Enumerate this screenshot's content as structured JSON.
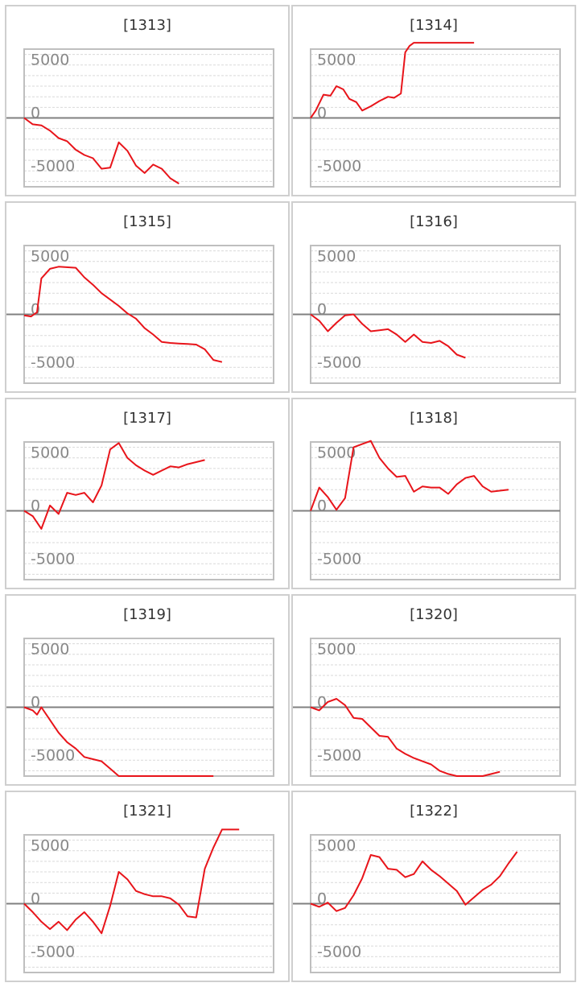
{
  "colors": {
    "line": "#e8141a",
    "zero_line": "#808080",
    "grid": "#d9d9d9",
    "frame": "#bfbfbf",
    "tick": "#888888"
  },
  "chart_data": [
    {
      "type": "line",
      "title": "[1313]",
      "yticks": [
        5000,
        0,
        -5000
      ],
      "ylim": [
        -6500,
        6500
      ],
      "grid": true,
      "xlim": [
        0,
        29
      ],
      "x": [
        0,
        1,
        2,
        3,
        4,
        5,
        6,
        7,
        8,
        9,
        10,
        11,
        12,
        13,
        14,
        15,
        16,
        17,
        18
      ],
      "values": [
        0,
        -600,
        -700,
        -1200,
        -1900,
        -2200,
        -3000,
        -3500,
        -3800,
        -4800,
        -4700,
        -2300,
        -3100,
        -4500,
        -5200,
        -4400,
        -4800,
        -5700,
        -6200
      ]
    },
    {
      "type": "line",
      "title": "[1314]",
      "yticks": [
        5000,
        0,
        -5000
      ],
      "ylim": [
        -6500,
        6500
      ],
      "grid": true,
      "xlim": [
        0,
        29
      ],
      "x": [
        0,
        0.6,
        1.5,
        2.3,
        3,
        3.8,
        4.5,
        5.3,
        6,
        7,
        8,
        9,
        9.7,
        10.5,
        11,
        11.5,
        12,
        12.5,
        13,
        14,
        15,
        16,
        17,
        18,
        19
      ],
      "values": [
        0,
        700,
        2200,
        2100,
        3000,
        2700,
        1800,
        1500,
        700,
        1100,
        1600,
        2000,
        1900,
        2300,
        6200,
        6800,
        7100,
        7100,
        7100,
        7100,
        7100,
        7100,
        7100,
        7100,
        7100
      ]
    },
    {
      "type": "line",
      "title": "[1315]",
      "yticks": [
        5000,
        0,
        -5000
      ],
      "ylim": [
        -6500,
        6500
      ],
      "grid": true,
      "xlim": [
        0,
        29
      ],
      "x": [
        0,
        0.8,
        1.5,
        2,
        3,
        4,
        6,
        7,
        8,
        9,
        10,
        11,
        12,
        13,
        14,
        15,
        16,
        17,
        18,
        19,
        20,
        21,
        22,
        23
      ],
      "values": [
        -100,
        -200,
        200,
        3400,
        4300,
        4500,
        4400,
        3500,
        2800,
        2000,
        1400,
        800,
        100,
        -400,
        -1300,
        -1900,
        -2600,
        -2700,
        -2750,
        -2800,
        -2850,
        -3300,
        -4300,
        -4500
      ]
    },
    {
      "type": "line",
      "title": "[1316]",
      "yticks": [
        5000,
        0,
        -5000
      ],
      "ylim": [
        -6500,
        6500
      ],
      "grid": true,
      "xlim": [
        0,
        29
      ],
      "x": [
        0,
        1,
        2,
        3,
        4,
        5,
        6,
        7,
        8,
        9,
        10,
        11,
        12,
        13,
        14,
        15,
        16,
        17,
        18
      ],
      "values": [
        0,
        -600,
        -1600,
        -800,
        -100,
        0,
        -900,
        -1600,
        -1500,
        -1400,
        -1900,
        -2600,
        -1900,
        -2600,
        -2700,
        -2500,
        -3000,
        -3800,
        -4100
      ]
    },
    {
      "type": "line",
      "title": "[1317]",
      "yticks": [
        5000,
        0,
        -5000
      ],
      "ylim": [
        -6500,
        6500
      ],
      "grid": true,
      "xlim": [
        0,
        29
      ],
      "x": [
        0,
        1,
        2,
        3,
        4,
        5,
        6,
        7,
        8,
        9,
        10,
        11,
        12,
        13,
        14,
        15,
        16,
        17,
        18,
        19,
        20,
        21
      ],
      "values": [
        0,
        -500,
        -1700,
        500,
        -300,
        1700,
        1500,
        1700,
        800,
        2400,
        5800,
        6400,
        5000,
        4300,
        3800,
        3400,
        3800,
        4200,
        4100,
        4400,
        4600,
        4800
      ]
    },
    {
      "type": "line",
      "title": "[1318]",
      "yticks": [
        5000,
        0,
        -5000
      ],
      "ylim": [
        -6500,
        6500
      ],
      "grid": true,
      "xlim": [
        0,
        29
      ],
      "x": [
        0,
        1,
        2,
        3,
        4,
        5,
        6,
        7,
        8,
        9,
        10,
        11,
        12,
        13,
        14,
        15,
        16,
        17,
        18,
        19,
        20,
        21,
        22,
        23
      ],
      "values": [
        0,
        2200,
        1300,
        100,
        1200,
        6000,
        6300,
        6600,
        5000,
        4000,
        3200,
        3300,
        1800,
        2300,
        2200,
        2200,
        1600,
        2500,
        3100,
        3300,
        2300,
        1800,
        1900,
        2000
      ]
    },
    {
      "type": "line",
      "title": "[1319]",
      "yticks": [
        5000,
        0,
        -5000
      ],
      "ylim": [
        -6500,
        6500
      ],
      "grid": true,
      "xlim": [
        0,
        29
      ],
      "x": [
        0,
        1,
        1.5,
        2,
        3,
        4,
        5,
        6,
        7,
        8,
        9,
        10,
        11,
        12,
        13,
        14,
        15,
        16,
        17,
        18,
        19,
        20,
        21,
        22
      ],
      "values": [
        0,
        -300,
        -700,
        0,
        -1200,
        -2400,
        -3300,
        -3900,
        -4700,
        -4900,
        -5100,
        -5800,
        -6500,
        -6500,
        -6500,
        -6500,
        -6500,
        -6500,
        -6500,
        -6500,
        -6500,
        -6500,
        -6500,
        -6500
      ]
    },
    {
      "type": "line",
      "title": "[1320]",
      "yticks": [
        5000,
        0,
        -5000
      ],
      "ylim": [
        -6500,
        6500
      ],
      "grid": true,
      "xlim": [
        0,
        29
      ],
      "x": [
        0,
        1,
        2,
        3,
        4,
        5,
        6,
        7,
        8,
        9,
        10,
        11,
        12,
        13,
        14,
        15,
        16,
        17,
        18,
        19,
        20,
        21,
        22
      ],
      "values": [
        0,
        -300,
        500,
        800,
        200,
        -1000,
        -1100,
        -1900,
        -2700,
        -2800,
        -3900,
        -4400,
        -4800,
        -5100,
        -5400,
        -6000,
        -6300,
        -6500,
        -6500,
        -6500,
        -6500,
        -6300,
        -6100
      ]
    },
    {
      "type": "line",
      "title": "[1321]",
      "yticks": [
        5000,
        0,
        -5000
      ],
      "ylim": [
        -6500,
        6500
      ],
      "grid": true,
      "xlim": [
        0,
        29
      ],
      "x": [
        0,
        1,
        2,
        3,
        4,
        5,
        6,
        7,
        8,
        9,
        10,
        11,
        12,
        13,
        14,
        15,
        16,
        17,
        18,
        19,
        20,
        21,
        22,
        23,
        24,
        25
      ],
      "values": [
        0,
        -800,
        -1700,
        -2400,
        -1700,
        -2500,
        -1500,
        -800,
        -1700,
        -2800,
        -200,
        3000,
        2300,
        1200,
        900,
        700,
        700,
        500,
        -100,
        -1200,
        -1300,
        3300,
        5300,
        7000,
        7000,
        7000
      ]
    },
    {
      "type": "line",
      "title": "[1322]",
      "yticks": [
        5000,
        0,
        -5000
      ],
      "ylim": [
        -6500,
        6500
      ],
      "grid": true,
      "xlim": [
        0,
        29
      ],
      "x": [
        0,
        1,
        2,
        3,
        4,
        5,
        6,
        7,
        8,
        9,
        10,
        11,
        12,
        13,
        14,
        15,
        16,
        17,
        18,
        19,
        20,
        21,
        22,
        23,
        24
      ],
      "values": [
        0,
        -300,
        100,
        -700,
        -400,
        800,
        2400,
        4600,
        4400,
        3300,
        3200,
        2500,
        2800,
        4000,
        3200,
        2600,
        1900,
        1200,
        -100,
        600,
        1300,
        1800,
        2600,
        3800,
        4900
      ]
    }
  ]
}
